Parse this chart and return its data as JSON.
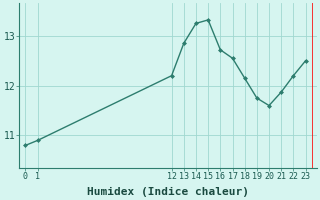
{
  "x": [
    0,
    1,
    12,
    13,
    14,
    15,
    16,
    17,
    18,
    19,
    20,
    21,
    22,
    23
  ],
  "y": [
    10.8,
    10.9,
    12.2,
    12.85,
    13.25,
    13.32,
    12.72,
    12.55,
    12.15,
    11.75,
    11.6,
    11.87,
    12.2,
    12.5
  ],
  "xlabel": "Humidex (Indice chaleur)",
  "ylim": [
    10.35,
    13.65
  ],
  "xlim": [
    -0.5,
    23.9
  ],
  "bg_color": "#d6f5f0",
  "line_color": "#2d7d6e",
  "grid_color": "#a0d8d0",
  "yticks": [
    11,
    12,
    13
  ],
  "xticks": [
    0,
    1,
    12,
    13,
    14,
    15,
    16,
    17,
    18,
    19,
    20,
    21,
    22,
    23
  ],
  "xlabel_fontsize": 8,
  "tick_fontsize": 6,
  "ytick_fontsize": 7
}
